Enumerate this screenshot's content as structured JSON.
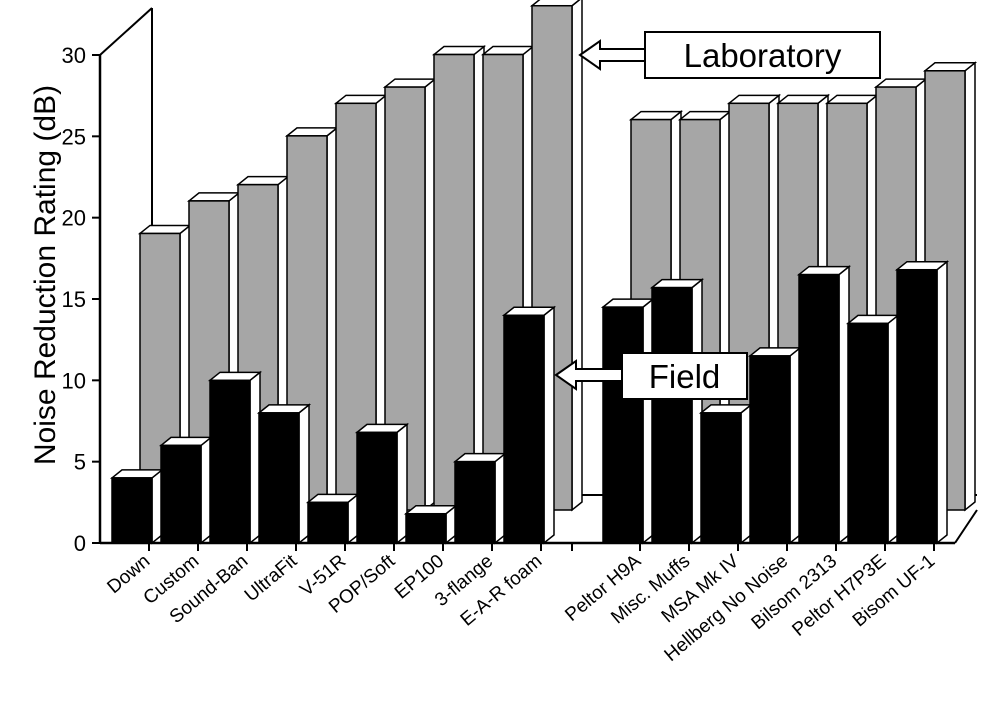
{
  "chart_data": {
    "type": "bar",
    "title": "",
    "xlabel": "",
    "ylabel": "Noise Reduction Rating (dB)",
    "ylim": [
      0,
      30
    ],
    "yticks": [
      "0",
      "5",
      "10",
      "15",
      "20",
      "25",
      "30"
    ],
    "grid": false,
    "categories": [
      "Down",
      "Custom",
      "Sound-Ban",
      "UltraFit",
      "V-51R",
      "POP/Soft",
      "EP100",
      "3-flange",
      "E-A-R foam",
      "Peltor H9A",
      "Misc. Muffs",
      "MSA Mk IV",
      "Hellberg No Noise",
      "Bilsom 2313",
      "Peltor H7P3E",
      "Bisom UF-1"
    ],
    "series": [
      {
        "name": "Laboratory",
        "color": "#a6a6a6",
        "values": [
          17,
          19,
          20,
          23,
          25,
          26,
          28,
          28,
          31,
          24,
          24,
          25,
          25,
          25,
          26,
          27
        ]
      },
      {
        "name": "Field",
        "color": "#000000",
        "values": [
          4,
          6,
          10,
          8,
          2.5,
          6.8,
          1.8,
          5,
          14,
          14.5,
          15.7,
          8,
          11.5,
          16.5,
          13.5,
          16.8
        ]
      }
    ]
  }
}
